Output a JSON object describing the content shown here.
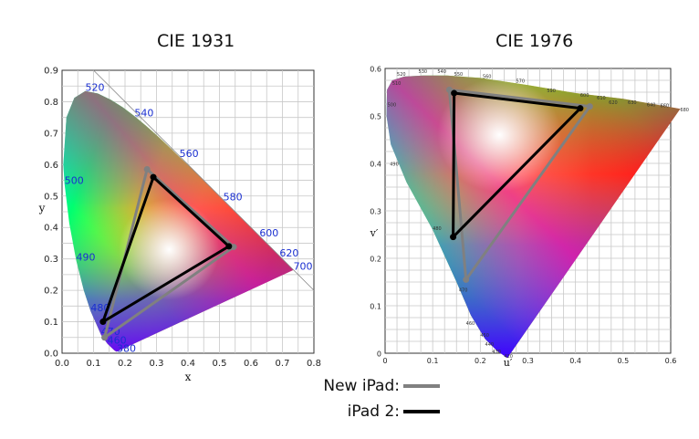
{
  "chart_data": [
    {
      "type": "scatter",
      "title": "CIE 1931",
      "xlabel": "x",
      "ylabel": "y",
      "xlim": [
        0,
        0.8
      ],
      "ylim": [
        0,
        0.9
      ],
      "xticks": [
        "0.0",
        "0.1",
        "0.2",
        "0.3",
        "0.4",
        "0.5",
        "0.6",
        "0.7",
        "0.8"
      ],
      "yticks": [
        "0.0",
        "0.1",
        "0.2",
        "0.3",
        "0.4",
        "0.5",
        "0.6",
        "0.7",
        "0.8",
        "0.9"
      ],
      "grid": true,
      "wavelength_labels": [
        {
          "label": "380",
          "x": 0.174,
          "y": 0.005
        },
        {
          "label": "460",
          "x": 0.144,
          "y": 0.03
        },
        {
          "label": "470",
          "x": 0.124,
          "y": 0.058
        },
        {
          "label": "480",
          "x": 0.091,
          "y": 0.133
        },
        {
          "label": "490",
          "x": 0.045,
          "y": 0.295
        },
        {
          "label": "500",
          "x": 0.008,
          "y": 0.538
        },
        {
          "label": "520",
          "x": 0.074,
          "y": 0.834
        },
        {
          "label": "540",
          "x": 0.23,
          "y": 0.754
        },
        {
          "label": "560",
          "x": 0.373,
          "y": 0.624
        },
        {
          "label": "580",
          "x": 0.512,
          "y": 0.487
        },
        {
          "label": "600",
          "x": 0.627,
          "y": 0.372
        },
        {
          "label": "620",
          "x": 0.691,
          "y": 0.308
        },
        {
          "label": "700",
          "x": 0.735,
          "y": 0.265
        }
      ],
      "series": [
        {
          "name": "New iPad",
          "color": "#808080",
          "points": [
            [
              0.27,
              0.585
            ],
            [
              0.545,
              0.338
            ],
            [
              0.135,
              0.05
            ]
          ]
        },
        {
          "name": "iPad 2",
          "color": "#000000",
          "points": [
            [
              0.29,
              0.56
            ],
            [
              0.53,
              0.34
            ],
            [
              0.13,
              0.1
            ]
          ]
        }
      ]
    },
    {
      "type": "scatter",
      "title": "CIE 1976",
      "xlabel": "u′",
      "ylabel": "v′",
      "xlim": [
        0,
        0.6
      ],
      "ylim": [
        0,
        0.6
      ],
      "xticks": [
        "0",
        "0.1",
        "0.2",
        "0.3",
        "0.4",
        "0.5",
        "0.6"
      ],
      "yticks": [
        "0",
        "0.1",
        "0.2",
        "0.3",
        "0.4",
        "0.5",
        "0.6"
      ],
      "grid": true,
      "wavelength_labels": [
        {
          "label": "420",
          "x": 0.25,
          "y": -0.01
        },
        {
          "label": "430",
          "x": 0.225,
          "y": 0.0
        },
        {
          "label": "440",
          "x": 0.21,
          "y": 0.015
        },
        {
          "label": "450",
          "x": 0.2,
          "y": 0.035
        },
        {
          "label": "460",
          "x": 0.17,
          "y": 0.06
        },
        {
          "label": "470",
          "x": 0.155,
          "y": 0.13
        },
        {
          "label": "480",
          "x": 0.1,
          "y": 0.26
        },
        {
          "label": "490",
          "x": 0.01,
          "y": 0.395
        },
        {
          "label": "500",
          "x": 0.005,
          "y": 0.52
        },
        {
          "label": "510",
          "x": 0.015,
          "y": 0.565
        },
        {
          "label": "520",
          "x": 0.025,
          "y": 0.585
        },
        {
          "label": "530",
          "x": 0.07,
          "y": 0.59
        },
        {
          "label": "540",
          "x": 0.11,
          "y": 0.59
        },
        {
          "label": "550",
          "x": 0.145,
          "y": 0.585
        },
        {
          "label": "560",
          "x": 0.205,
          "y": 0.58
        },
        {
          "label": "570",
          "x": 0.275,
          "y": 0.57
        },
        {
          "label": "590",
          "x": 0.34,
          "y": 0.55
        },
        {
          "label": "600",
          "x": 0.41,
          "y": 0.54
        },
        {
          "label": "610",
          "x": 0.445,
          "y": 0.535
        },
        {
          "label": "620",
          "x": 0.47,
          "y": 0.525
        },
        {
          "label": "630",
          "x": 0.51,
          "y": 0.525
        },
        {
          "label": "640",
          "x": 0.55,
          "y": 0.52
        },
        {
          "label": "660",
          "x": 0.578,
          "y": 0.518
        },
        {
          "label": "680",
          "x": 0.62,
          "y": 0.51
        }
      ],
      "series": [
        {
          "name": "New iPad",
          "color": "#808080",
          "points": [
            [
              0.135,
              0.555
            ],
            [
              0.43,
              0.52
            ],
            [
              0.17,
              0.155
            ]
          ]
        },
        {
          "name": "iPad 2",
          "color": "#000000",
          "points": [
            [
              0.145,
              0.548
            ],
            [
              0.41,
              0.516
            ],
            [
              0.143,
              0.245
            ]
          ]
        }
      ]
    }
  ],
  "legend": [
    {
      "label": "New iPad:",
      "color": "#808080"
    },
    {
      "label": "iPad 2:",
      "color": "#000000"
    }
  ]
}
